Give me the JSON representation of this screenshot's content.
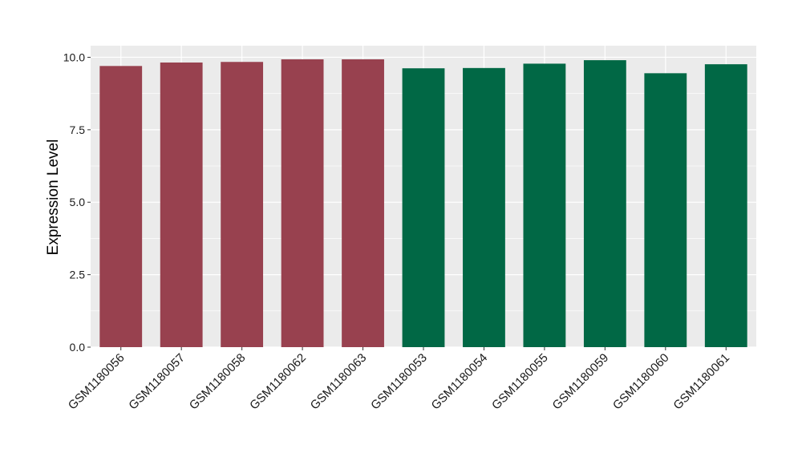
{
  "chart_data": {
    "type": "bar",
    "title": "",
    "xlabel": "",
    "ylabel": "Expression Level",
    "ylim": [
      0,
      10.4
    ],
    "yticks": [
      0.0,
      2.5,
      5.0,
      7.5,
      10.0
    ],
    "ytick_labels": [
      "0.0",
      "2.5",
      "5.0",
      "7.5",
      "10.0"
    ],
    "grid": true,
    "legend": "none",
    "categories": [
      "GSM1180056",
      "GSM1180057",
      "GSM1180058",
      "GSM1180062",
      "GSM1180063",
      "GSM1180053",
      "GSM1180054",
      "GSM1180055",
      "GSM1180059",
      "GSM1180060",
      "GSM1180061"
    ],
    "values": [
      9.7,
      9.82,
      9.84,
      9.93,
      9.93,
      9.62,
      9.63,
      9.78,
      9.9,
      9.45,
      9.76
    ],
    "group_index": [
      0,
      0,
      0,
      0,
      0,
      1,
      1,
      1,
      1,
      1,
      1
    ],
    "colors": [
      "#98414f",
      "#016845"
    ],
    "panel_background": "#ebebeb",
    "grid_color": "#ffffff"
  }
}
